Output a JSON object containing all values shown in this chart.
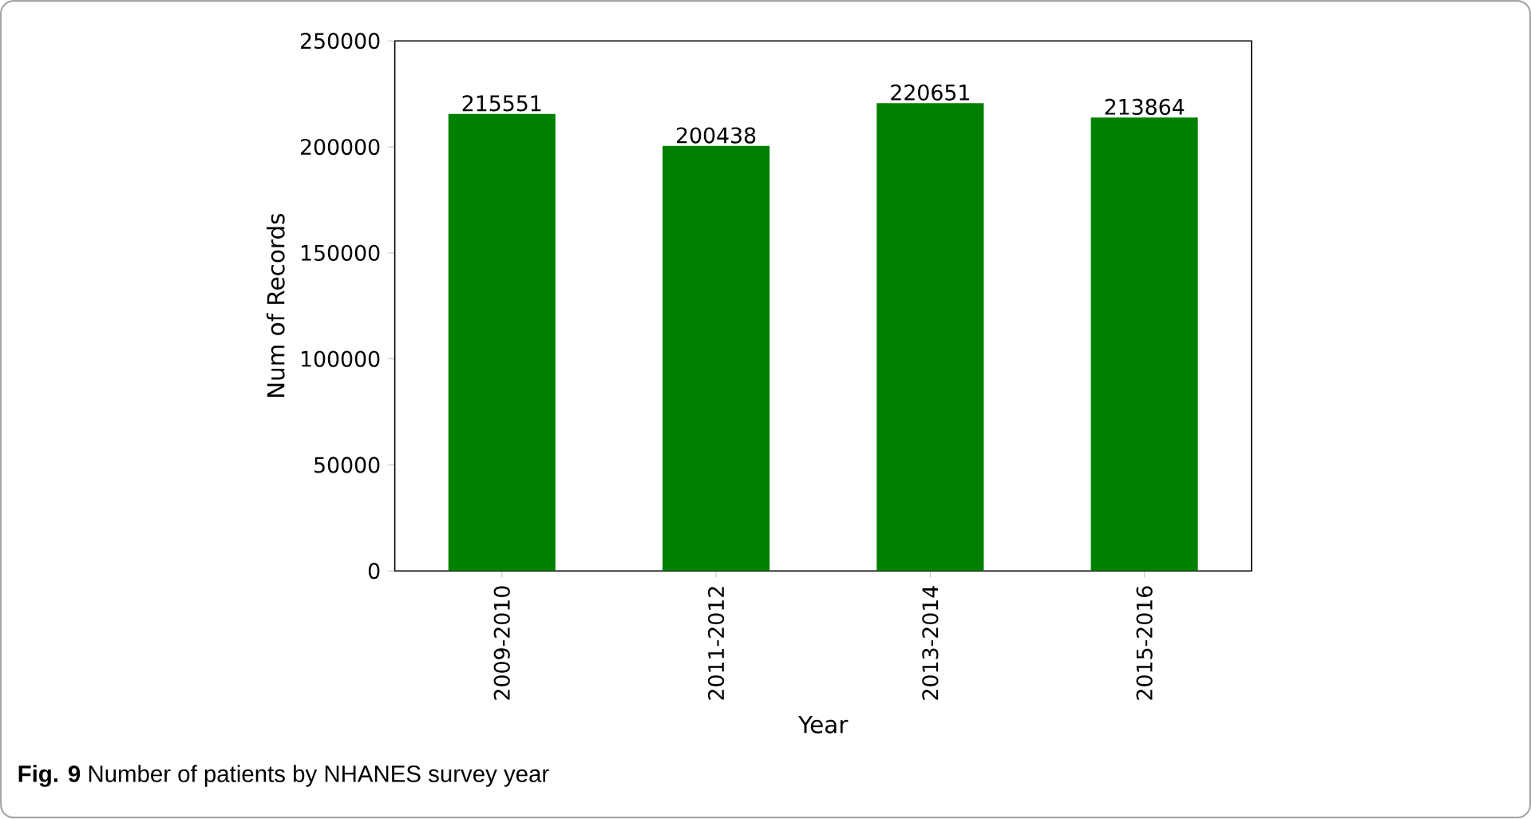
{
  "chart_data": {
    "type": "bar",
    "categories": [
      "2009-2010",
      "2011-2012",
      "2013-2014",
      "2015-2016"
    ],
    "values": [
      215551,
      200438,
      220651,
      213864
    ],
    "color": "#008000",
    "xlabel": "Year",
    "ylabel": "Num of Records",
    "ylim": [
      0,
      250000
    ],
    "yticks": [
      0,
      50000,
      100000,
      150000,
      200000,
      250000
    ],
    "data_labels": true,
    "grid": false,
    "annotations": [
      "**Fig. 9** Number of patients by NHANES survey year"
    ]
  }
}
